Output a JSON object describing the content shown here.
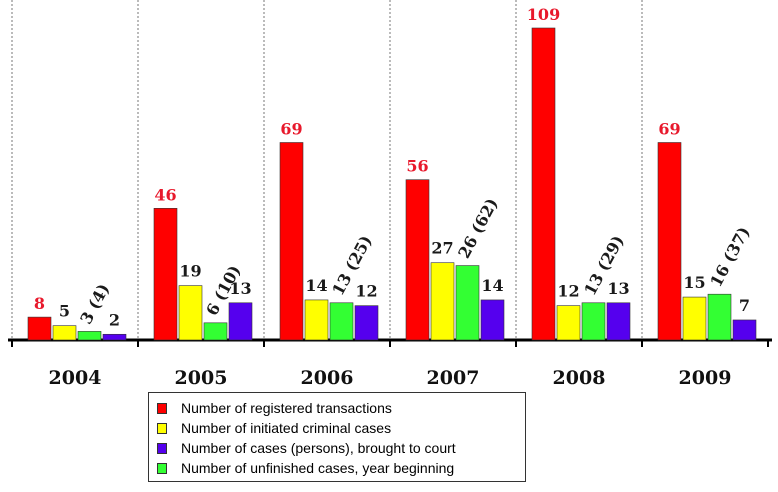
{
  "colors": {
    "registered": "#ff0000",
    "initiated": "#ffff00",
    "unfinished": "#33ff33",
    "court": "#5500ee"
  },
  "chart_data": {
    "type": "bar",
    "categories": [
      "2004",
      "2005",
      "2006",
      "2007",
      "2008",
      "2009"
    ],
    "series": [
      {
        "name": "Number of registered transactions",
        "key": "registered",
        "values": [
          8,
          46,
          69,
          56,
          109,
          69
        ],
        "labels": [
          "8",
          "46",
          "69",
          "56",
          "109",
          "69"
        ]
      },
      {
        "name": "Number of initiated criminal cases",
        "key": "initiated",
        "values": [
          5,
          19,
          14,
          27,
          12,
          15
        ],
        "labels": [
          "5",
          "19",
          "14",
          "27",
          "12",
          "15"
        ]
      },
      {
        "name": "Number of unfinished cases, year beginning",
        "key": "unfinished",
        "values": [
          3,
          6,
          13,
          26,
          13,
          16
        ],
        "labels": [
          "3 (4)",
          "6 (10)",
          "13 (25)",
          "26 (62)",
          "13 (29)",
          "16 (37)"
        ]
      },
      {
        "name": "Number of cases (persons), brought to court",
        "key": "court",
        "values": [
          2,
          13,
          12,
          14,
          13,
          7
        ],
        "labels": [
          "2",
          "13",
          "12",
          "14",
          "13",
          "7"
        ]
      }
    ],
    "ylim": [
      0,
      110
    ],
    "grid": "vertical dashed separators between years",
    "legend_position": "bottom-center"
  },
  "legend": [
    {
      "label": "Number of registered transactions",
      "key": "registered"
    },
    {
      "label": "Number of initiated criminal cases",
      "key": "initiated"
    },
    {
      "label": "Number of cases (persons), brought to court",
      "key": "court"
    },
    {
      "label": "Number of unfinished cases, year beginning",
      "key": "unfinished"
    }
  ]
}
